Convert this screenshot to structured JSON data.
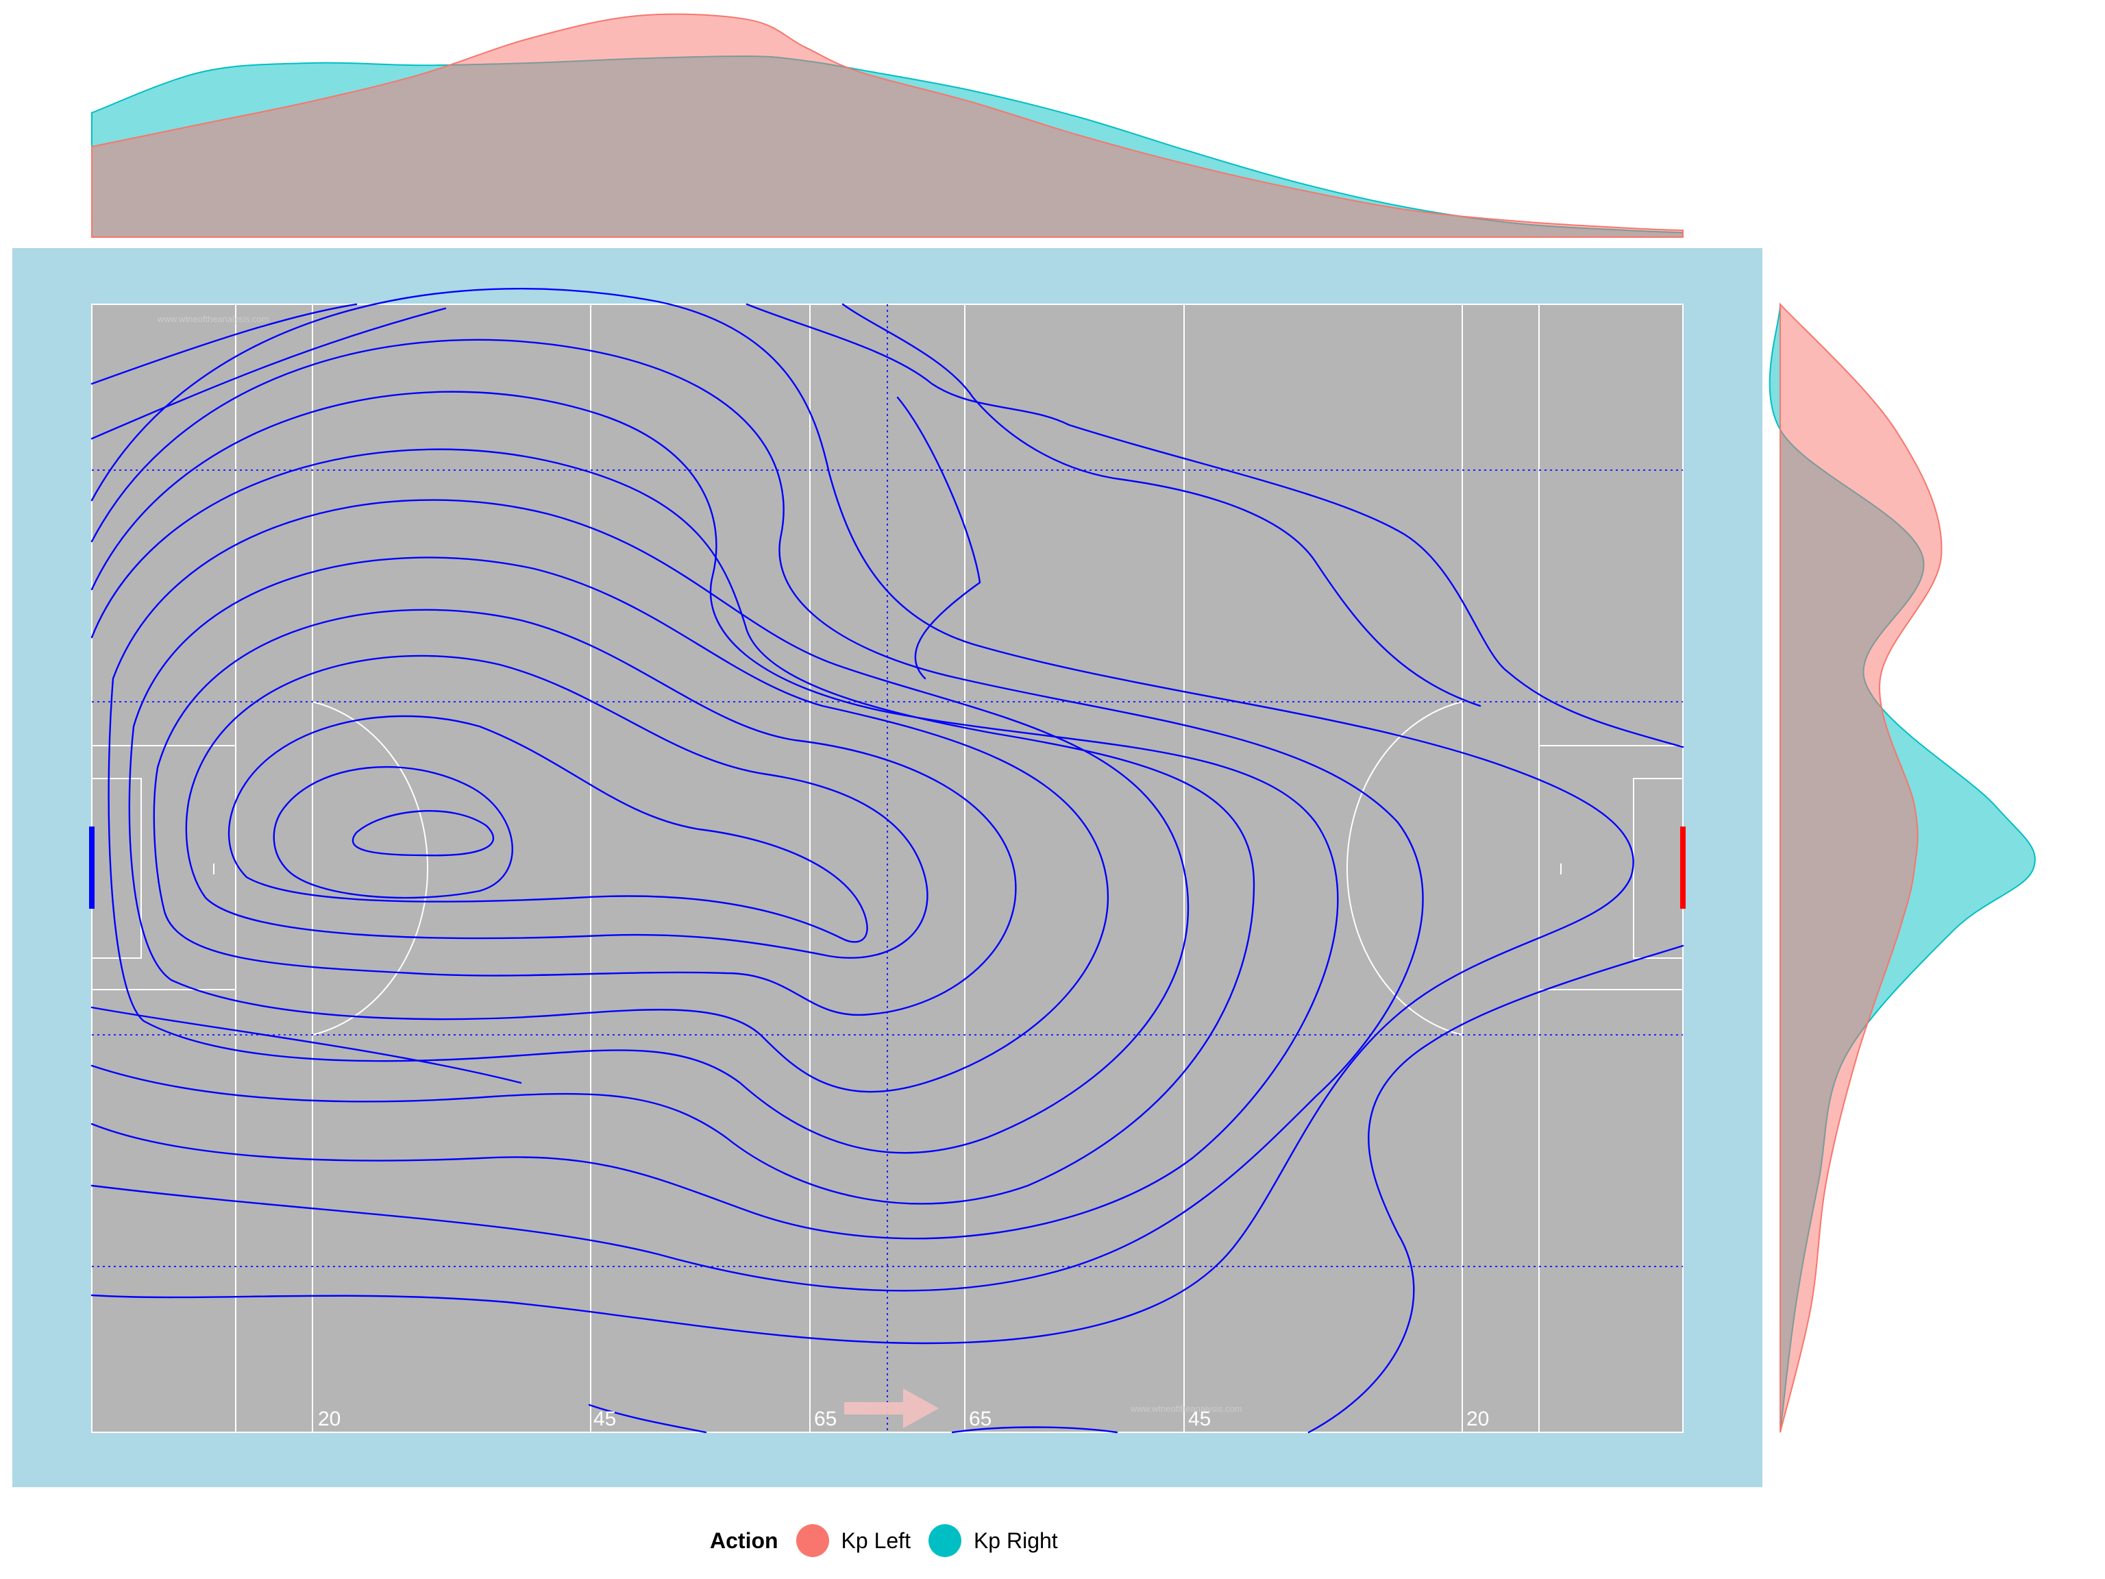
{
  "chart_data": {
    "type": "density",
    "description_free": true,
    "legend": {
      "title": "Action",
      "items": [
        {
          "name": "Kp Left",
          "color": "#F8766D"
        },
        {
          "name": "Kp Right",
          "color": "#00BFC4"
        }
      ],
      "placement": "bottom"
    },
    "pitch": {
      "background": "#b5b5b5",
      "surround": "#add8e6",
      "line_color": "#ffffff",
      "contour_color": "#0000ff",
      "length": 145,
      "width": 90,
      "yard_labels": [
        "20",
        "45",
        "65",
        "65",
        "45",
        "20"
      ],
      "watermark": "www.wtneoftheanalysis.com",
      "left_goal_color": "#0000ff",
      "right_goal_color": "#ff0000",
      "direction_arrow_color": "#f4c2c2"
    },
    "top_density": {
      "series": [
        {
          "name": "Kp Left",
          "x": [
            0,
            10,
            20,
            30,
            40,
            50,
            60,
            65,
            70,
            80,
            90,
            100,
            110,
            120,
            130,
            140,
            145
          ],
          "y": [
            0.4,
            0.5,
            0.6,
            0.72,
            0.88,
            0.98,
            0.96,
            0.84,
            0.73,
            0.6,
            0.45,
            0.32,
            0.21,
            0.12,
            0.07,
            0.04,
            0.03
          ]
        },
        {
          "name": "Kp Right",
          "x": [
            0,
            10,
            20,
            30,
            40,
            50,
            60,
            65,
            70,
            80,
            90,
            100,
            110,
            120,
            130,
            140,
            145
          ],
          "y": [
            0.55,
            0.73,
            0.77,
            0.76,
            0.77,
            0.79,
            0.8,
            0.78,
            0.74,
            0.65,
            0.53,
            0.38,
            0.24,
            0.13,
            0.06,
            0.03,
            0.02
          ]
        }
      ]
    },
    "right_density": {
      "series": [
        {
          "name": "Kp Left",
          "y": [
            0,
            10,
            20,
            30,
            40,
            45,
            50,
            60,
            70,
            80,
            90
          ],
          "density": [
            0.0,
            0.08,
            0.12,
            0.2,
            0.31,
            0.35,
            0.35,
            0.26,
            0.42,
            0.3,
            0.0
          ]
        },
        {
          "name": "Kp Right",
          "y": [
            0,
            10,
            20,
            30,
            40,
            45,
            50,
            60,
            70,
            80,
            90
          ],
          "density": [
            0.0,
            0.04,
            0.1,
            0.17,
            0.45,
            0.66,
            0.56,
            0.22,
            0.37,
            0.0,
            0.0
          ]
        }
      ]
    }
  }
}
